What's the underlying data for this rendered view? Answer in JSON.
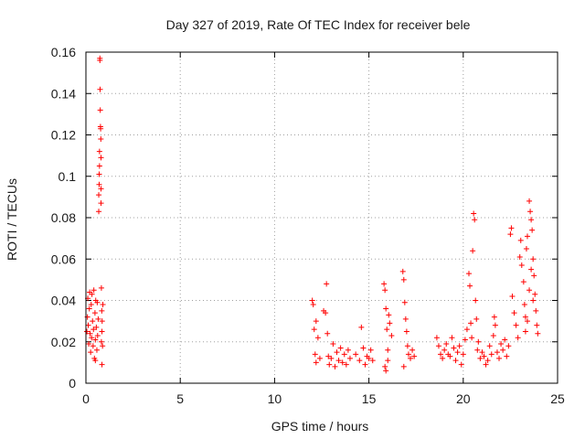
{
  "chart_data": {
    "type": "scatter",
    "title": "Day 327 of 2019, Rate Of TEC Index for receiver bele",
    "xlabel": "GPS time / hours",
    "ylabel": "ROTI / TECUs",
    "xlim": [
      0,
      25
    ],
    "ylim": [
      0,
      0.16
    ],
    "x_ticks": [
      0,
      5,
      10,
      15,
      20,
      25
    ],
    "x_tick_labels": [
      "0",
      "5",
      "10",
      "15",
      "20",
      "25"
    ],
    "y_ticks": [
      0,
      0.02,
      0.04,
      0.06,
      0.08,
      0.1,
      0.12,
      0.14,
      0.16
    ],
    "y_tick_labels": [
      "0",
      "0.02",
      "0.04",
      "0.06",
      "0.08",
      "0.1",
      "0.12",
      "0.14",
      "0.16"
    ],
    "grid": true,
    "marker": "plus",
    "marker_color": "#ff0000",
    "series": [
      {
        "points": [
          [
            0.05,
            0.025
          ],
          [
            0.08,
            0.032
          ],
          [
            0.1,
            0.041
          ],
          [
            0.12,
            0.028
          ],
          [
            0.15,
            0.019
          ],
          [
            0.18,
            0.036
          ],
          [
            0.2,
            0.044
          ],
          [
            0.22,
            0.024
          ],
          [
            0.25,
            0.015
          ],
          [
            0.28,
            0.038
          ],
          [
            0.3,
            0.022
          ],
          [
            0.32,
            0.043
          ],
          [
            0.35,
            0.03
          ],
          [
            0.38,
            0.018
          ],
          [
            0.4,
            0.026
          ],
          [
            0.42,
            0.045
          ],
          [
            0.45,
            0.012
          ],
          [
            0.48,
            0.034
          ],
          [
            0.5,
            0.021
          ],
          [
            0.52,
            0.04
          ],
          [
            0.55,
            0.027
          ],
          [
            0.58,
            0.016
          ],
          [
            0.6,
            0.039
          ],
          [
            0.62,
            0.023
          ],
          [
            0.65,
            0.031
          ],
          [
            0.68,
            0.083
          ],
          [
            0.68,
            0.091
          ],
          [
            0.7,
            0.096
          ],
          [
            0.7,
            0.101
          ],
          [
            0.72,
            0.105
          ],
          [
            0.72,
            0.112
          ],
          [
            0.74,
            0.157
          ],
          [
            0.74,
            0.156
          ],
          [
            0.75,
            0.142
          ],
          [
            0.76,
            0.132
          ],
          [
            0.77,
            0.124
          ],
          [
            0.78,
            0.123
          ],
          [
            0.79,
            0.118
          ],
          [
            0.8,
            0.109
          ],
          [
            0.8,
            0.087
          ],
          [
            0.8,
            0.094
          ],
          [
            0.82,
            0.046
          ],
          [
            0.82,
            0.02
          ],
          [
            0.84,
            0.035
          ],
          [
            0.85,
            0.025
          ],
          [
            0.86,
            0.03
          ],
          [
            0.88,
            0.018
          ],
          [
            0.9,
            0.038
          ],
          [
            0.85,
            0.009
          ],
          [
            0.5,
            0.011
          ],
          [
            12.0,
            0.04
          ],
          [
            12.05,
            0.038
          ],
          [
            12.1,
            0.026
          ],
          [
            12.15,
            0.014
          ],
          [
            12.2,
            0.01
          ],
          [
            12.3,
            0.022
          ],
          [
            12.4,
            0.012
          ],
          [
            12.2,
            0.03
          ],
          [
            12.6,
            0.035
          ],
          [
            12.7,
            0.034
          ],
          [
            12.75,
            0.048
          ],
          [
            12.8,
            0.024
          ],
          [
            12.85,
            0.013
          ],
          [
            12.9,
            0.009
          ],
          [
            13.0,
            0.012
          ],
          [
            13.1,
            0.019
          ],
          [
            13.2,
            0.008
          ],
          [
            13.3,
            0.015
          ],
          [
            13.4,
            0.011
          ],
          [
            13.5,
            0.017
          ],
          [
            13.6,
            0.01
          ],
          [
            13.7,
            0.014
          ],
          [
            13.8,
            0.009
          ],
          [
            13.9,
            0.016
          ],
          [
            14.0,
            0.012
          ],
          [
            14.3,
            0.014
          ],
          [
            14.5,
            0.011
          ],
          [
            14.6,
            0.027
          ],
          [
            14.7,
            0.017
          ],
          [
            14.8,
            0.009
          ],
          [
            14.9,
            0.013
          ],
          [
            15.0,
            0.012
          ],
          [
            15.1,
            0.016
          ],
          [
            15.2,
            0.011
          ],
          [
            15.8,
            0.048
          ],
          [
            15.85,
            0.045
          ],
          [
            15.9,
            0.036
          ],
          [
            15.95,
            0.026
          ],
          [
            16.0,
            0.016
          ],
          [
            15.85,
            0.008
          ],
          [
            15.9,
            0.006
          ],
          [
            16.05,
            0.033
          ],
          [
            16.1,
            0.029
          ],
          [
            16.0,
            0.011
          ],
          [
            16.2,
            0.023
          ],
          [
            16.8,
            0.054
          ],
          [
            16.85,
            0.05
          ],
          [
            16.9,
            0.039
          ],
          [
            16.95,
            0.031
          ],
          [
            17.0,
            0.025
          ],
          [
            17.05,
            0.018
          ],
          [
            17.1,
            0.014
          ],
          [
            17.2,
            0.012
          ],
          [
            17.3,
            0.016
          ],
          [
            17.4,
            0.013
          ],
          [
            16.85,
            0.008
          ],
          [
            18.6,
            0.022
          ],
          [
            18.7,
            0.018
          ],
          [
            18.8,
            0.014
          ],
          [
            18.9,
            0.012
          ],
          [
            19.0,
            0.016
          ],
          [
            19.1,
            0.019
          ],
          [
            19.2,
            0.014
          ],
          [
            19.3,
            0.013
          ],
          [
            19.4,
            0.022
          ],
          [
            19.5,
            0.017
          ],
          [
            19.6,
            0.011
          ],
          [
            19.7,
            0.015
          ],
          [
            19.8,
            0.018
          ],
          [
            19.9,
            0.009
          ],
          [
            20.0,
            0.014
          ],
          [
            20.1,
            0.021
          ],
          [
            20.2,
            0.026
          ],
          [
            20.3,
            0.053
          ],
          [
            20.35,
            0.047
          ],
          [
            20.4,
            0.029
          ],
          [
            20.45,
            0.022
          ],
          [
            20.5,
            0.064
          ],
          [
            20.55,
            0.082
          ],
          [
            20.6,
            0.079
          ],
          [
            20.65,
            0.04
          ],
          [
            20.7,
            0.031
          ],
          [
            20.75,
            0.016
          ],
          [
            20.8,
            0.02
          ],
          [
            20.9,
            0.012
          ],
          [
            21.0,
            0.015
          ],
          [
            21.1,
            0.013
          ],
          [
            21.2,
            0.009
          ],
          [
            21.3,
            0.011
          ],
          [
            21.4,
            0.018
          ],
          [
            21.5,
            0.014
          ],
          [
            21.6,
            0.023
          ],
          [
            21.65,
            0.032
          ],
          [
            21.7,
            0.028
          ],
          [
            21.8,
            0.015
          ],
          [
            21.9,
            0.012
          ],
          [
            22.0,
            0.019
          ],
          [
            22.1,
            0.016
          ],
          [
            22.2,
            0.021
          ],
          [
            22.3,
            0.013
          ],
          [
            22.4,
            0.018
          ],
          [
            22.5,
            0.072
          ],
          [
            22.55,
            0.075
          ],
          [
            22.6,
            0.042
          ],
          [
            22.7,
            0.034
          ],
          [
            22.8,
            0.028
          ],
          [
            22.9,
            0.022
          ],
          [
            23.0,
            0.061
          ],
          [
            23.05,
            0.069
          ],
          [
            23.1,
            0.057
          ],
          [
            23.2,
            0.049
          ],
          [
            23.25,
            0.038
          ],
          [
            23.3,
            0.032
          ],
          [
            23.35,
            0.065
          ],
          [
            23.4,
            0.071
          ],
          [
            23.5,
            0.088
          ],
          [
            23.55,
            0.083
          ],
          [
            23.6,
            0.079
          ],
          [
            23.65,
            0.074
          ],
          [
            23.7,
            0.06
          ],
          [
            23.75,
            0.052
          ],
          [
            23.8,
            0.043
          ],
          [
            23.85,
            0.035
          ],
          [
            23.9,
            0.028
          ],
          [
            23.95,
            0.024
          ],
          [
            23.5,
            0.045
          ],
          [
            23.4,
            0.03
          ],
          [
            23.3,
            0.025
          ],
          [
            23.6,
            0.055
          ],
          [
            23.7,
            0.04
          ]
        ]
      }
    ]
  }
}
